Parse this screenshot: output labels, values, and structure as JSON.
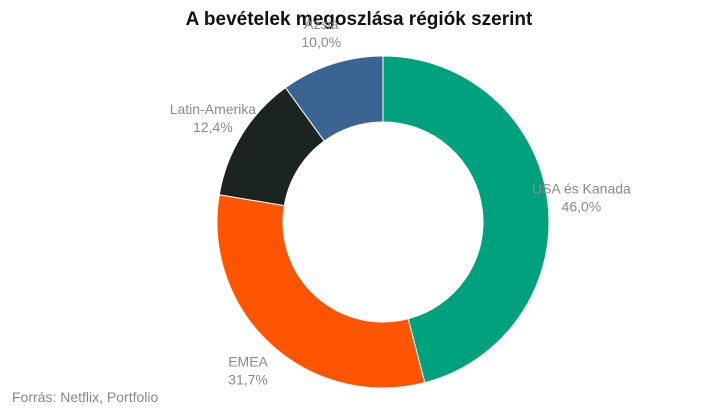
{
  "chart_data": {
    "type": "pie",
    "variant": "donut",
    "title": "A bevételek megoszlása régiók szerint",
    "slices": [
      {
        "label": "USA és Kanada",
        "value": 46.0,
        "value_label": "46,0%",
        "color": "#00A27E"
      },
      {
        "label": "EMEA",
        "value": 31.7,
        "value_label": "31,7%",
        "color": "#FF5500"
      },
      {
        "label": "Latin-Amerika",
        "value": 12.4,
        "value_label": "12,4%",
        "color": "#1C2422"
      },
      {
        "label": "Ázsia",
        "value": 10.0,
        "value_label": "10,0%",
        "color": "#3C6492"
      }
    ],
    "start": "top",
    "direction": "clockwise"
  },
  "source": "Forrás: Netflix, Portfolio"
}
